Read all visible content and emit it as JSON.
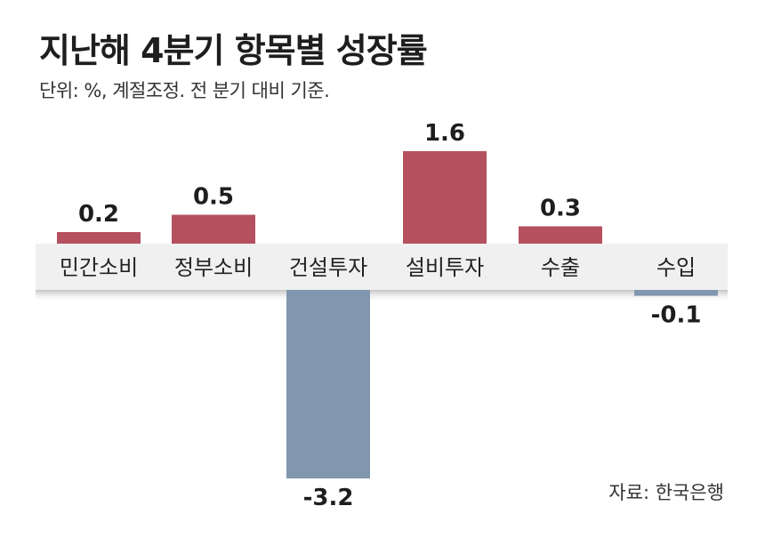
{
  "title": "지난해 4분기 항목별 성장률",
  "subtitle": "단위: %, 계절조정. 전 분기 대비 기준.",
  "source": "자료: 한국은행",
  "colors": {
    "positive": "#b5505e",
    "negative": "#8197b0",
    "band": "#f0f0f0",
    "band_shadow": "#c8c8c8"
  },
  "chart_data": {
    "type": "bar",
    "categories": [
      "민간소비",
      "정부소비",
      "건설투자",
      "설비투자",
      "수출",
      "수입"
    ],
    "values": [
      0.2,
      0.5,
      -3.2,
      1.6,
      0.3,
      -0.1
    ],
    "value_labels": [
      "0.2",
      "0.5",
      "-3.2",
      "1.6",
      "0.3",
      "-0.1"
    ],
    "ylim": [
      -3.2,
      1.6
    ],
    "grid": false,
    "legend": "none"
  }
}
